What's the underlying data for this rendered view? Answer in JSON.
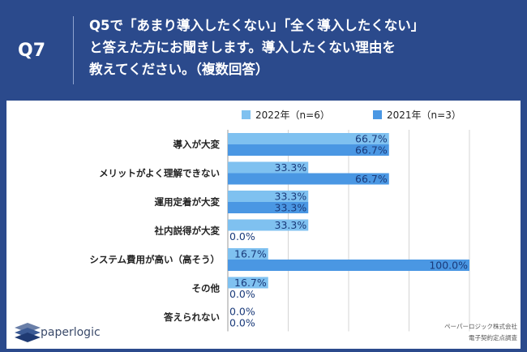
{
  "header": {
    "badge": "Q7",
    "question_lines": [
      "Q5で「あまり導入したくない」「全く導入したくない」",
      "と答えた方にお聞きします。導入したくない理由を",
      "教えてください。（複数回答）"
    ]
  },
  "colors": {
    "background": "#2b4a8c",
    "series_2022": "#7fc1f0",
    "series_2021": "#4a97e3",
    "label_text": "#1a3a7a"
  },
  "chart_data": {
    "type": "bar",
    "orientation": "horizontal",
    "categories": [
      "導入が大変",
      "メリットがよく理解できない",
      "運用定着が大変",
      "社内説得が大変",
      "システム費用が高い（高そう）",
      "その他",
      "答えられない"
    ],
    "series": [
      {
        "name": "2022年（n=6）",
        "values": [
          66.7,
          33.3,
          33.3,
          33.3,
          16.7,
          16.7,
          0.0
        ],
        "labels": [
          "66.7%",
          "33.3%",
          "33.3%",
          "33.3%",
          "16.7%",
          "16.7%",
          "0.0%"
        ]
      },
      {
        "name": "2021年（n=3）",
        "values": [
          66.7,
          66.7,
          33.3,
          0.0,
          100.0,
          0.0,
          0.0
        ],
        "labels": [
          "66.7%",
          "66.7%",
          "33.3%",
          "0.0%",
          "100.0%",
          "0.0%",
          "0.0%"
        ]
      }
    ],
    "xlim": [
      0,
      100
    ],
    "legend_position": "top",
    "grid": true
  },
  "footer": {
    "logo_text": "paperlogic",
    "credit_lines": [
      "ペーパーロジック株式会社",
      "電子契約定点調査"
    ]
  }
}
